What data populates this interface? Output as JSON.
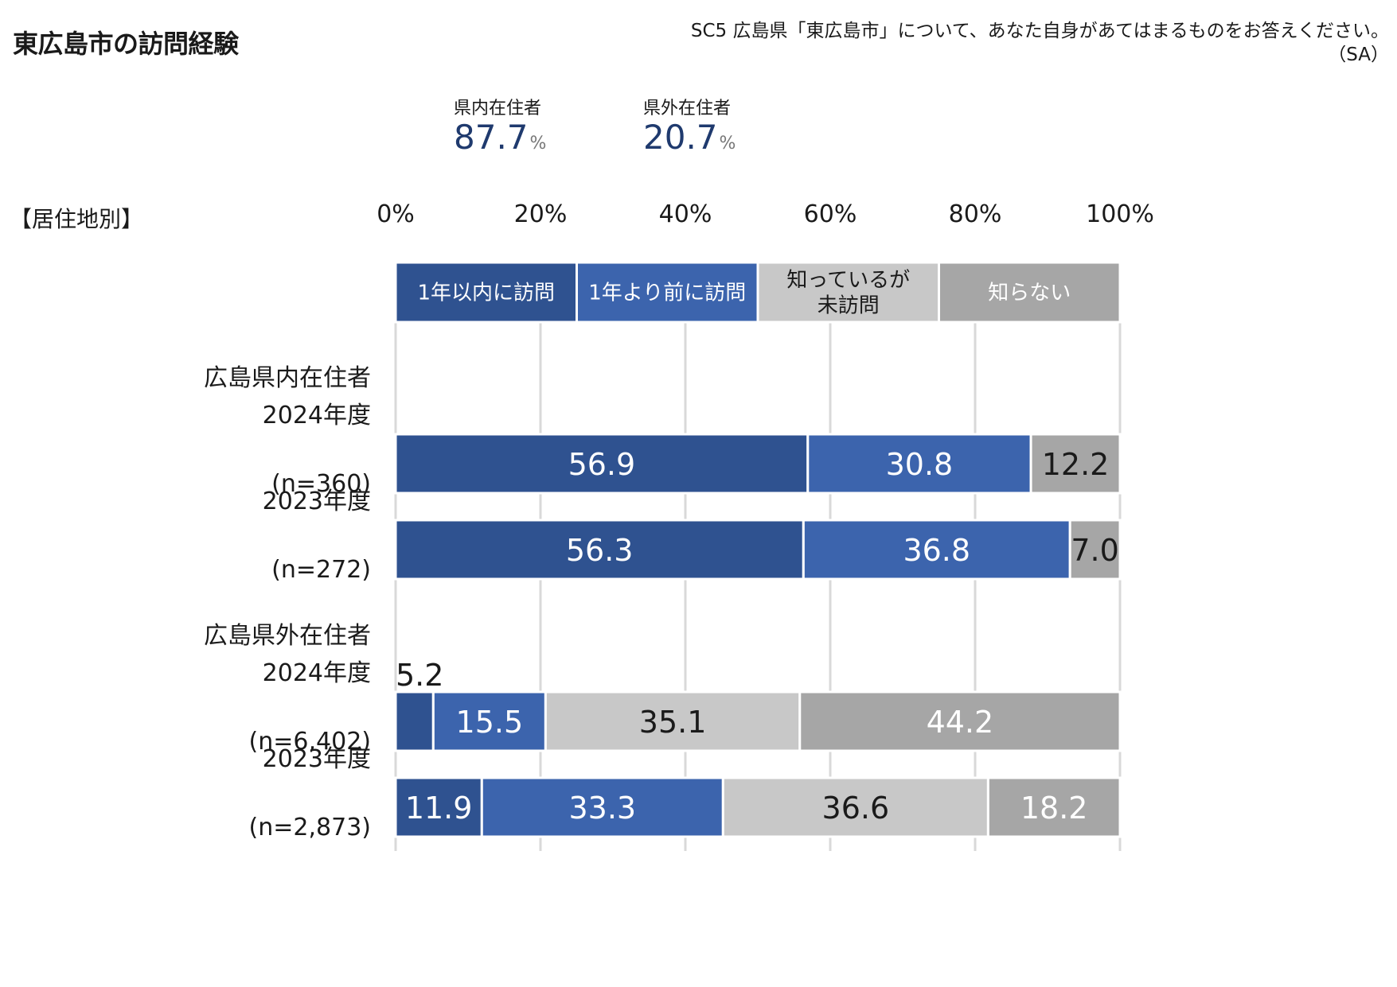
{
  "title": "東広島市の訪問経験",
  "question": {
    "line1": "SC5 広島県「東広島市」について、あなた自身があてはまるものをお答えください。",
    "line2": "（SA）"
  },
  "kpis": [
    {
      "label": "県内在住者",
      "value": "87.7",
      "unit": "%"
    },
    {
      "label": "県外在住者",
      "value": "20.7",
      "unit": "%"
    }
  ],
  "group_caption": "【居住地別】",
  "colors": {
    "visited_within_year": "#2f5290",
    "visited_before": "#3c64ad",
    "known_not_visited": "#c8c8c8",
    "unknown": "#a6a6a6",
    "grid": "#d9d9d9"
  },
  "chart_data": {
    "type": "bar",
    "orientation": "horizontal",
    "stacked": true,
    "xlim": [
      0,
      100
    ],
    "ticks": [
      "0%",
      "20%",
      "40%",
      "60%",
      "80%",
      "100%"
    ],
    "legend_position": "top",
    "legend": [
      "1年以内に訪問",
      "1年より前に訪問",
      "知っているが\n未訪問",
      "知らない"
    ],
    "series_names": [
      "1年以内に訪問",
      "1年より前に訪問",
      "知っているが未訪問",
      "知らない"
    ],
    "groups": [
      {
        "label": "広島県内在住者",
        "rows": [
          {
            "label": "2024年度",
            "n": "(n=360)",
            "values": [
              56.9,
              30.8,
              null,
              12.2
            ],
            "labels": [
              "56.9",
              "30.8",
              "",
              "12.2"
            ]
          },
          {
            "label": "2023年度",
            "n": "(n=272)",
            "values": [
              56.3,
              36.8,
              null,
              7.0
            ],
            "labels": [
              "56.3",
              "36.8",
              "",
              "7.0"
            ]
          }
        ]
      },
      {
        "label": "広島県外在住者",
        "rows": [
          {
            "label": "2024年度",
            "n": "(n=6,402)",
            "values": [
              5.2,
              15.5,
              35.1,
              44.2
            ],
            "labels": [
              "5.2",
              "15.5",
              "35.1",
              "44.2"
            ]
          },
          {
            "label": "2023年度",
            "n": "(n=2,873)",
            "values": [
              11.9,
              33.3,
              36.6,
              18.2
            ],
            "labels": [
              "11.9",
              "33.3",
              "36.6",
              "18.2"
            ]
          }
        ]
      }
    ]
  }
}
